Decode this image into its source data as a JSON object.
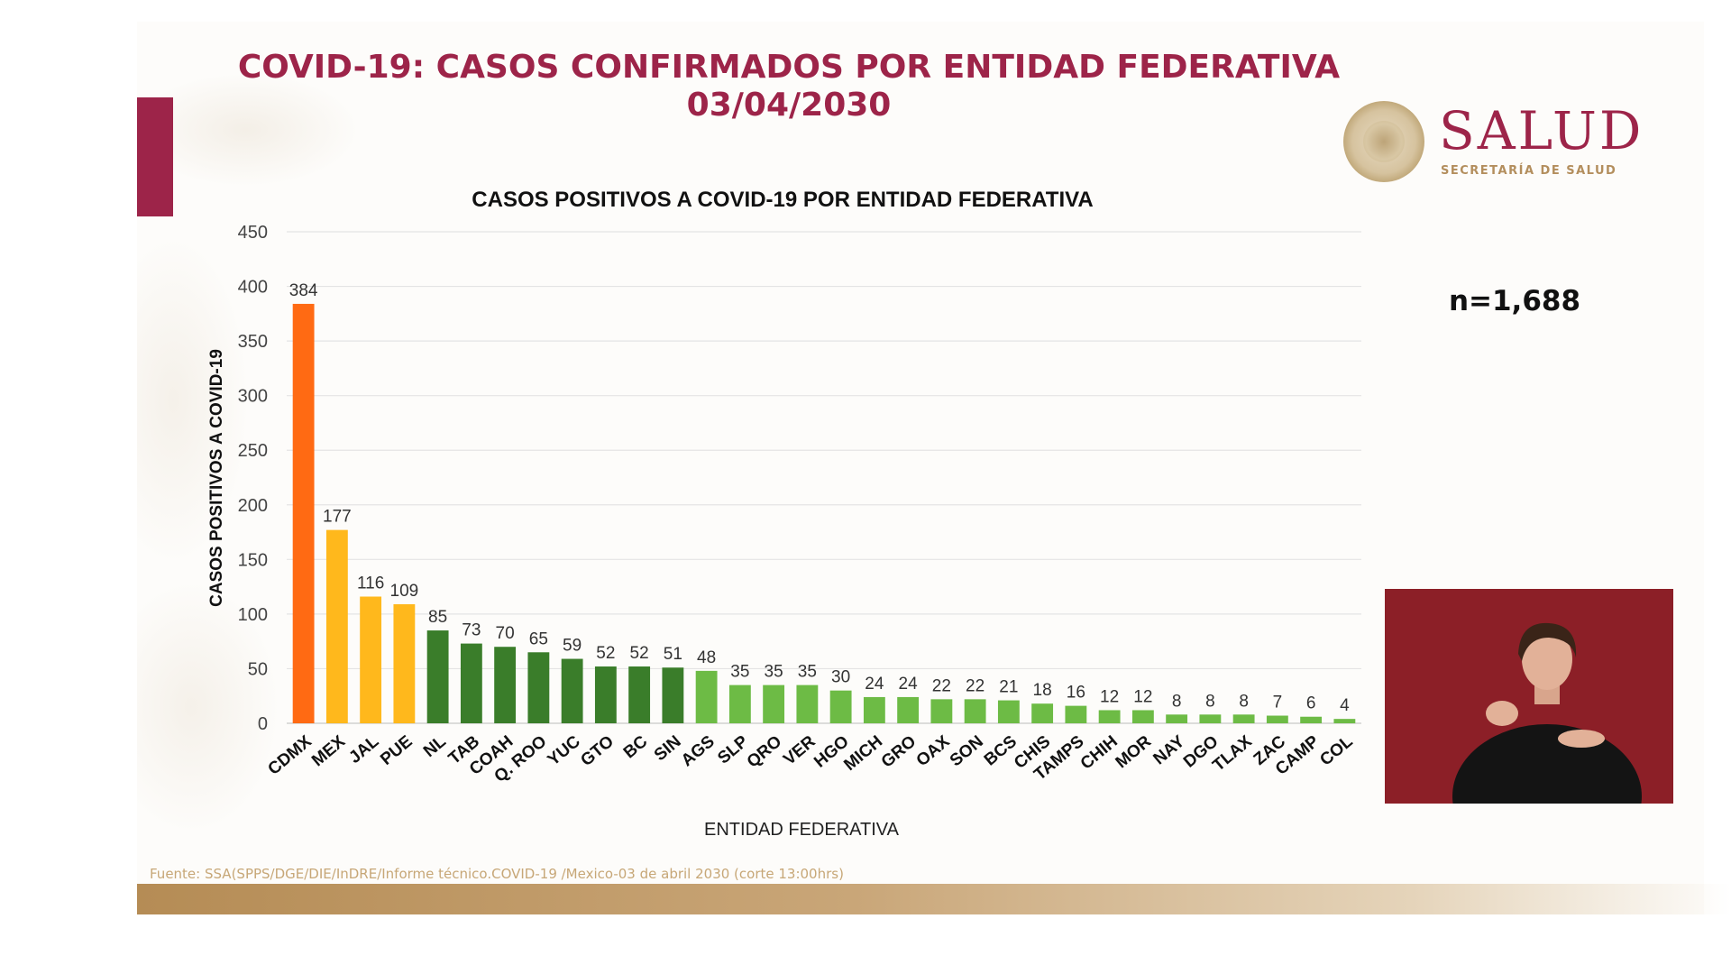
{
  "header": {
    "title_line1": "COVID-19: CASOS CONFIRMADOS POR ENTIDAD FEDERATIVA",
    "title_line2": "03/04/2030"
  },
  "logo": {
    "word": "SALUD",
    "subtitle": "SECRETARÍA DE SALUD"
  },
  "total_label": "n=1,688",
  "source_text": "Fuente: SSA(SPPS/DGE/DIE/InDRE/Informe técnico.COVID-19 /Mexico-03 de abril 2030 (corte 13:00hrs)",
  "colors": {
    "brand_red": "#9d2449",
    "gold": "#b38e5d",
    "bar_orange": "#ff6a13",
    "bar_yellow": "#ffb81c",
    "bar_dark_green": "#3a7d2a",
    "bar_light_green": "#6dbb45"
  },
  "chart_data": {
    "type": "bar",
    "title": "CASOS POSITIVOS A COVID-19 POR ENTIDAD FEDERATIVA",
    "xlabel": "ENTIDAD FEDERATIVA",
    "ylabel": "CASOS POSITIVOS A COVID-19",
    "ylim": [
      0,
      450
    ],
    "yticks": [
      0,
      50,
      100,
      150,
      200,
      250,
      300,
      350,
      400,
      450
    ],
    "grid": true,
    "data_labels": true,
    "categories": [
      "CDMX",
      "MEX",
      "JAL",
      "PUE",
      "NL",
      "TAB",
      "COAH",
      "Q. ROO",
      "YUC",
      "GTO",
      "BC",
      "SIN",
      "AGS",
      "SLP",
      "QRO",
      "VER",
      "HGO",
      "MICH",
      "GRO",
      "OAX",
      "SON",
      "BCS",
      "CHIS",
      "TAMPS",
      "CHIH",
      "MOR",
      "NAY",
      "DGO",
      "TLAX",
      "ZAC",
      "CAMP",
      "COL"
    ],
    "values": [
      384,
      177,
      116,
      109,
      85,
      73,
      70,
      65,
      59,
      52,
      52,
      51,
      48,
      35,
      35,
      35,
      30,
      24,
      24,
      22,
      22,
      21,
      18,
      16,
      12,
      12,
      8,
      8,
      8,
      7,
      6,
      4
    ],
    "bar_colors": [
      "#ff6a13",
      "#ffb81c",
      "#ffb81c",
      "#ffb81c",
      "#3a7d2a",
      "#3a7d2a",
      "#3a7d2a",
      "#3a7d2a",
      "#3a7d2a",
      "#3a7d2a",
      "#3a7d2a",
      "#3a7d2a",
      "#6dbb45",
      "#6dbb45",
      "#6dbb45",
      "#6dbb45",
      "#6dbb45",
      "#6dbb45",
      "#6dbb45",
      "#6dbb45",
      "#6dbb45",
      "#6dbb45",
      "#6dbb45",
      "#6dbb45",
      "#6dbb45",
      "#6dbb45",
      "#6dbb45",
      "#6dbb45",
      "#6dbb45",
      "#6dbb45",
      "#6dbb45",
      "#6dbb45"
    ]
  }
}
